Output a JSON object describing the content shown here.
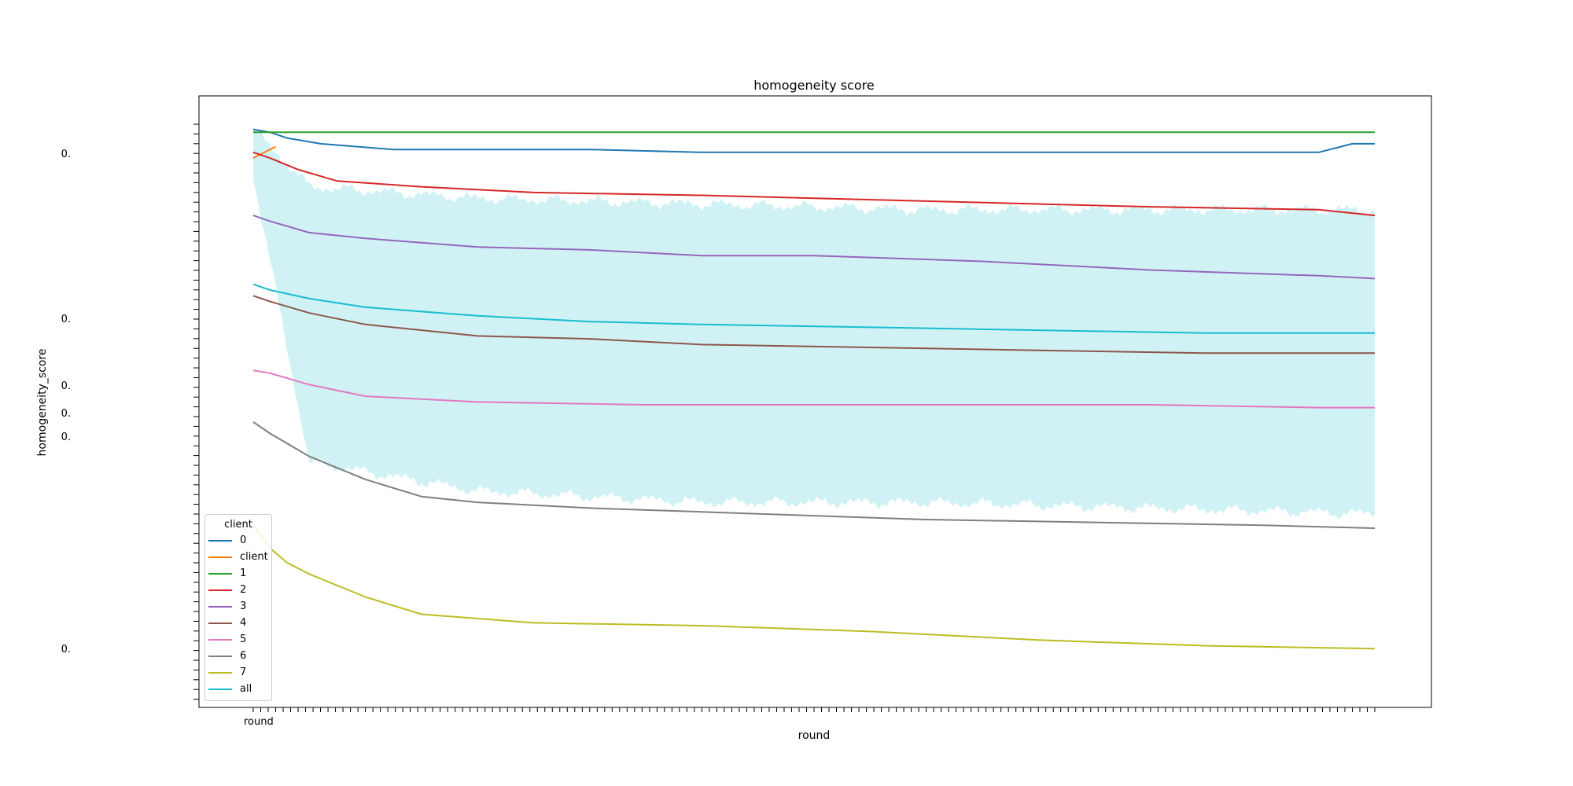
{
  "chart_data": {
    "type": "line",
    "title": "homogeneity score",
    "xlabel": "round",
    "ylabel": "homogeneity_score",
    "xlim": [
      0,
      2000
    ],
    "ylim": [
      0,
      1
    ],
    "x_tick_label_first": "round",
    "y_tick_labels": [
      "0.",
      "0.",
      "0.",
      "0.",
      "0.",
      "0."
    ],
    "grid": false,
    "legend": {
      "title": "client",
      "placement": "lower-left"
    },
    "band": {
      "series": "all",
      "color": "#17becf",
      "lower": [
        0.9,
        0.4,
        0.35,
        0.33,
        0.33,
        0.32,
        0.31
      ],
      "upper": [
        0.98,
        0.88,
        0.86,
        0.85,
        0.84,
        0.84,
        0.84
      ],
      "x": [
        0,
        100,
        400,
        800,
        1200,
        1600,
        2000
      ]
    },
    "series": [
      {
        "name": "0",
        "color": "#1f77b4",
        "x": [
          0,
          30,
          60,
          120,
          250,
          450,
          600,
          800,
          1100,
          1400,
          1700,
          1900,
          1960,
          2000
        ],
        "values": [
          0.98,
          0.975,
          0.965,
          0.955,
          0.945,
          0.945,
          0.945,
          0.94,
          0.94,
          0.94,
          0.94,
          0.94,
          0.955,
          0.955
        ]
      },
      {
        "name": "client",
        "color": "#ff7f0e",
        "x": [
          0,
          40
        ],
        "values": [
          0.93,
          0.95
        ]
      },
      {
        "name": "1",
        "color": "#2ca02c",
        "x": [
          0,
          2000
        ],
        "values": [
          0.975,
          0.975
        ]
      },
      {
        "name": "2",
        "color": "#d62728",
        "x": [
          0,
          30,
          80,
          150,
          300,
          500,
          800,
          1200,
          1600,
          1900,
          2000
        ],
        "values": [
          0.94,
          0.93,
          0.91,
          0.89,
          0.88,
          0.87,
          0.865,
          0.855,
          0.845,
          0.84,
          0.83
        ]
      },
      {
        "name": "3",
        "color": "#9467bd",
        "x": [
          0,
          30,
          100,
          200,
          400,
          600,
          800,
          1000,
          1300,
          1600,
          1900,
          2000
        ],
        "values": [
          0.83,
          0.82,
          0.8,
          0.79,
          0.775,
          0.77,
          0.76,
          0.76,
          0.75,
          0.735,
          0.725,
          0.72
        ]
      },
      {
        "name": "4",
        "color": "#8c564b",
        "x": [
          0,
          30,
          100,
          200,
          400,
          600,
          800,
          1100,
          1400,
          1700,
          2000
        ],
        "values": [
          0.69,
          0.68,
          0.66,
          0.64,
          0.62,
          0.615,
          0.605,
          0.6,
          0.595,
          0.59,
          0.59
        ]
      },
      {
        "name": "5",
        "color": "#e377c2",
        "x": [
          0,
          30,
          100,
          200,
          400,
          700,
          1000,
          1300,
          1600,
          1900,
          2000
        ],
        "values": [
          0.56,
          0.555,
          0.535,
          0.515,
          0.505,
          0.5,
          0.5,
          0.5,
          0.5,
          0.495,
          0.495
        ]
      },
      {
        "name": "6",
        "color": "#7f7f7f",
        "x": [
          0,
          30,
          100,
          200,
          300,
          400,
          600,
          900,
          1200,
          1500,
          1800,
          2000
        ],
        "values": [
          0.47,
          0.45,
          0.41,
          0.37,
          0.34,
          0.33,
          0.32,
          0.31,
          0.3,
          0.295,
          0.29,
          0.285
        ]
      },
      {
        "name": "7",
        "color": "#bcbd22",
        "x": [
          0,
          30,
          60,
          100,
          200,
          300,
          500,
          800,
          1100,
          1400,
          1700,
          2000
        ],
        "values": [
          0.29,
          0.25,
          0.225,
          0.205,
          0.165,
          0.135,
          0.12,
          0.115,
          0.105,
          0.09,
          0.08,
          0.075
        ]
      },
      {
        "name": "all",
        "color": "#17becf",
        "x": [
          0,
          30,
          100,
          200,
          400,
          600,
          800,
          1100,
          1400,
          1700,
          2000
        ],
        "values": [
          0.71,
          0.7,
          0.685,
          0.67,
          0.655,
          0.645,
          0.64,
          0.635,
          0.63,
          0.625,
          0.625
        ]
      }
    ]
  }
}
